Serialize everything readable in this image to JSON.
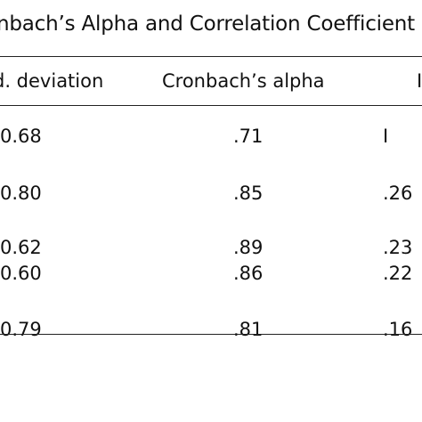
{
  "table": {
    "caption": "nbach’s Alpha and Correlation Coefficient",
    "headers": [
      "d. deviation",
      "Cronbach’s alpha",
      "I"
    ],
    "rows": [
      [
        "0.68",
        ".71",
        "I"
      ],
      [
        "0.80",
        ".85",
        ".26"
      ],
      [
        "0.62",
        ".89",
        ".23"
      ],
      [
        "0.60",
        ".86",
        ".22"
      ],
      [
        "0.79",
        ".81",
        ".16"
      ]
    ]
  }
}
